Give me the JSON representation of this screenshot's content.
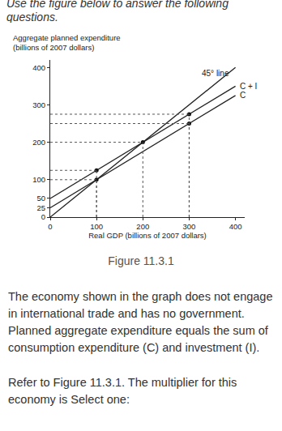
{
  "header": "Use the figure below to answer the following questions.",
  "chart_data": {
    "type": "line",
    "ylabel": "Aggregate planned expenditure\n(billions of 2007 dollars)",
    "xlabel": "Real GDP (billions of 2007 dollars)",
    "x": [
      0,
      100,
      200,
      300,
      400
    ],
    "series": [
      {
        "name": "45° line",
        "color": "#222222",
        "values": [
          0,
          100,
          200,
          300,
          400
        ]
      },
      {
        "name": "C + I",
        "color": "#222222",
        "values": [
          50,
          125,
          200,
          275,
          350
        ]
      },
      {
        "name": "C",
        "color": "#222222",
        "values": [
          25,
          100,
          175,
          250,
          325
        ]
      }
    ],
    "points": {
      "x": [
        100,
        100,
        200,
        300,
        300
      ],
      "y": [
        100,
        125,
        200,
        250,
        275
      ],
      "color": "#111111"
    },
    "xlim": [
      0,
      420
    ],
    "ylim": [
      0,
      420
    ],
    "xticks": [
      0,
      100,
      200,
      300,
      400
    ],
    "yticks": [
      0,
      25,
      50,
      100,
      200,
      300,
      400
    ],
    "grid": false
  },
  "caption": "Figure 11.3.1",
  "paragraphs": [
    "The economy shown in the graph does not engage in international trade and has no government. Planned aggregate expenditure equals the sum of consumption expenditure (C) and investment (I).",
    "Refer to Figure 11.3.1. The multiplier for this economy is Select one:"
  ]
}
